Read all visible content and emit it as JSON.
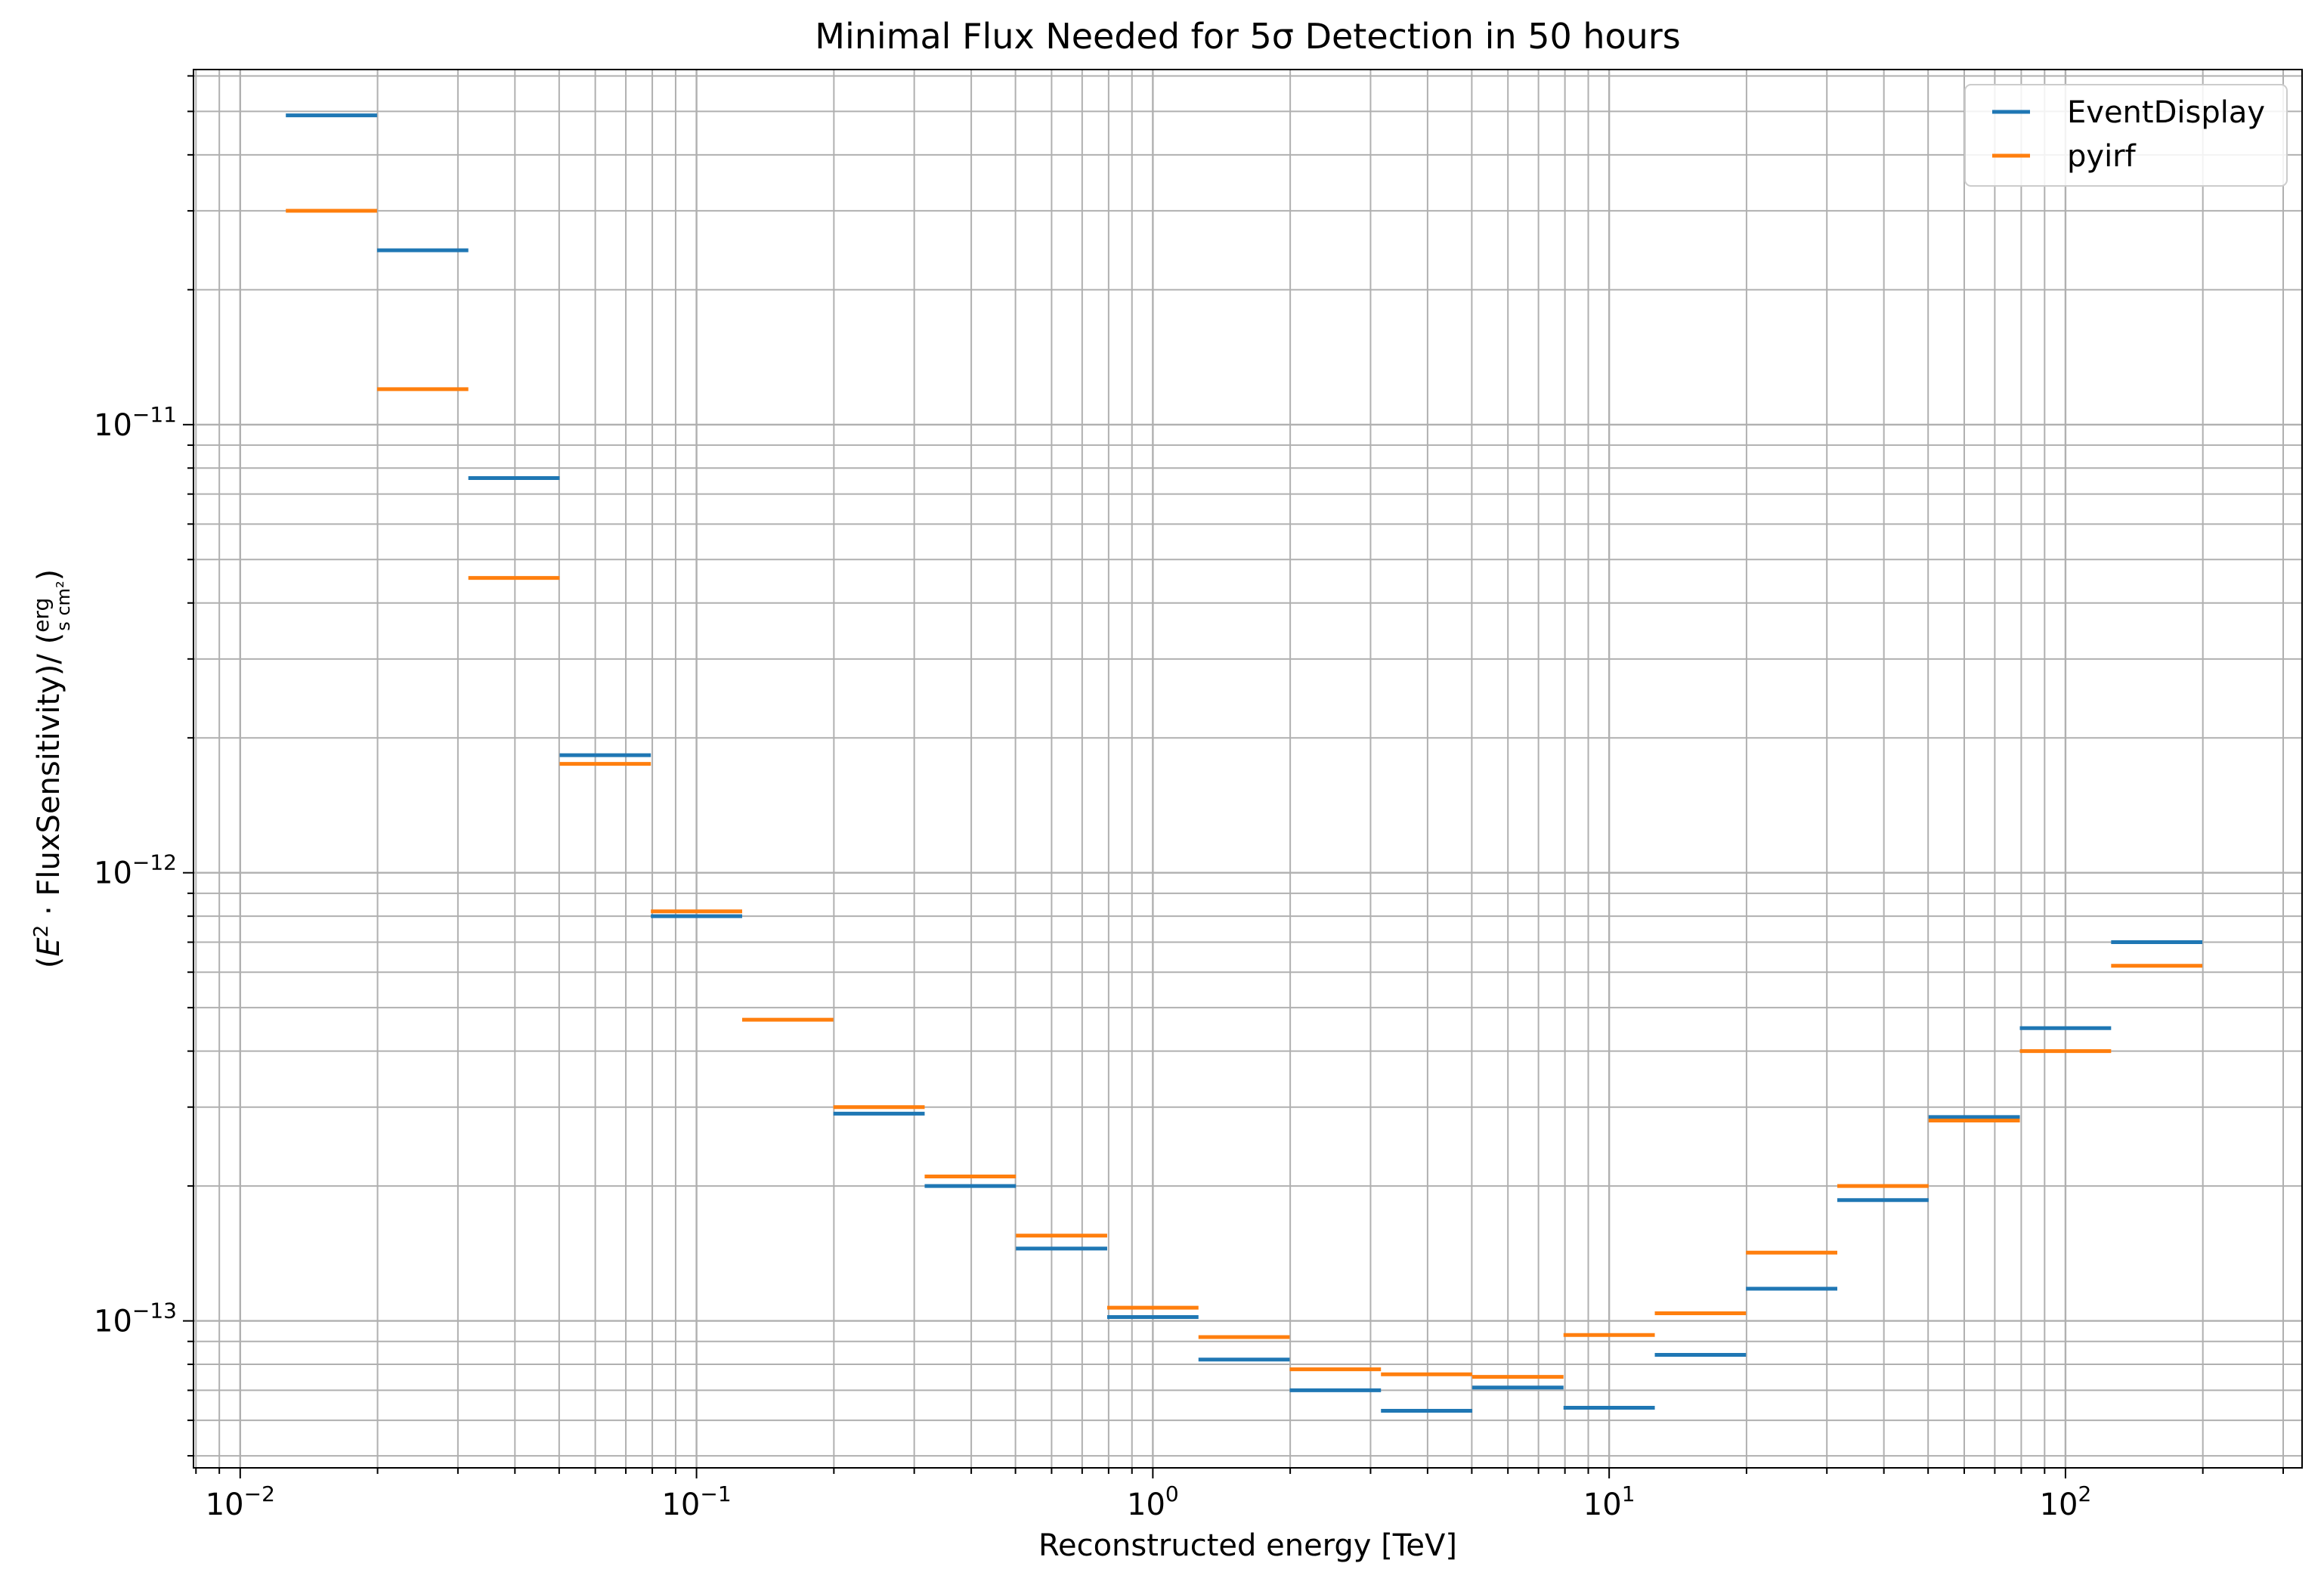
{
  "chart_data": {
    "type": "step",
    "title": "Minimal Flux Needed for 5σ Detection in 50 hours",
    "xlabel": "Reconstructed energy [TeV]",
    "ylabel": "(E² · FluxSensitivity)/ (erg / s cm²)",
    "xscale": "log",
    "yscale": "log",
    "xlim": [
      0.0079,
      330
    ],
    "ylim": [
      4.7e-14,
      6.2e-11
    ],
    "xticks": [
      {
        "value": 0.01,
        "base": "10",
        "exp": "−2"
      },
      {
        "value": 0.1,
        "base": "10",
        "exp": "−1"
      },
      {
        "value": 1,
        "base": "10",
        "exp": "0"
      },
      {
        "value": 10,
        "base": "10",
        "exp": "1"
      },
      {
        "value": 100,
        "base": "10",
        "exp": "2"
      }
    ],
    "yticks": [
      {
        "value": 1e-13,
        "base": "10",
        "exp": "−13"
      },
      {
        "value": 1e-12,
        "base": "10",
        "exp": "−12"
      },
      {
        "value": 1e-11,
        "base": "10",
        "exp": "−11"
      }
    ],
    "grid": true,
    "legend_position": "upper right",
    "bin_edges": [
      0.01259,
      0.01995,
      0.03162,
      0.05012,
      0.07943,
      0.1259,
      0.1995,
      0.3162,
      0.5012,
      0.7943,
      1.259,
      1.995,
      3.162,
      5.012,
      7.943,
      12.59,
      19.95,
      31.62,
      50.12,
      79.43,
      125.9,
      199.5
    ],
    "series": [
      {
        "name": "EventDisplay",
        "color": "#1f77b4",
        "values": [
          4.9e-11,
          2.45e-11,
          7.6e-12,
          1.83e-12,
          8e-13,
          null,
          2.9e-13,
          2e-13,
          1.45e-13,
          1.02e-13,
          8.2e-14,
          7e-14,
          6.3e-14,
          7.1e-14,
          6.4e-14,
          8.4e-14,
          1.18e-13,
          1.86e-13,
          2.85e-13,
          4.5e-13,
          7e-13
        ]
      },
      {
        "name": "pyirf",
        "color": "#ff7f0e",
        "values": [
          3e-11,
          1.2e-11,
          4.55e-12,
          1.75e-12,
          8.2e-13,
          4.7e-13,
          3e-13,
          2.1e-13,
          1.55e-13,
          1.07e-13,
          9.2e-14,
          7.8e-14,
          7.6e-14,
          7.5e-14,
          9.3e-14,
          1.04e-13,
          1.42e-13,
          2e-13,
          2.8e-13,
          4e-13,
          6.2e-13
        ]
      }
    ]
  }
}
